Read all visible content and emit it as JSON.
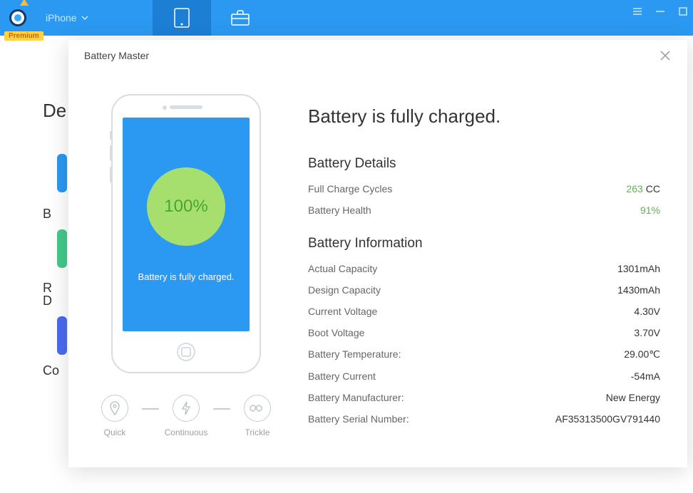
{
  "app": {
    "premium_label": "Premium",
    "device_label": "iPhone"
  },
  "window": {
    "title": "Battery Master"
  },
  "phone": {
    "percent": "100%",
    "subtext": "Battery is fully charged."
  },
  "modes": {
    "quick": "Quick",
    "continuous": "Continuous",
    "trickle": "Trickle"
  },
  "status_title": "Battery is fully charged.",
  "details": {
    "heading": "Battery Details",
    "full_cycles_label": "Full Charge Cycles",
    "full_cycles_value": "263",
    "full_cycles_unit": "CC",
    "health_label": "Battery Health",
    "health_value": "91%"
  },
  "info": {
    "heading": "Battery Information",
    "rows": [
      {
        "label": "Actual Capacity",
        "value": "1301mAh"
      },
      {
        "label": "Design Capacity",
        "value": "1430mAh"
      },
      {
        "label": "Current Voltage",
        "value": "4.30V"
      },
      {
        "label": "Boot Voltage",
        "value": "3.70V"
      },
      {
        "label": "Battery Temperature:",
        "value": "29.00℃"
      },
      {
        "label": "Battery Current",
        "value": "-54mA"
      },
      {
        "label": "Battery Manufacturer:",
        "value": "New Energy"
      },
      {
        "label": "Battery Serial Number:",
        "value": "AF35313500GV791440"
      }
    ]
  },
  "bg": {
    "header": "De",
    "frag_b": "B",
    "frag_r": "R",
    "frag_d": "D",
    "frag_co": "Co"
  }
}
